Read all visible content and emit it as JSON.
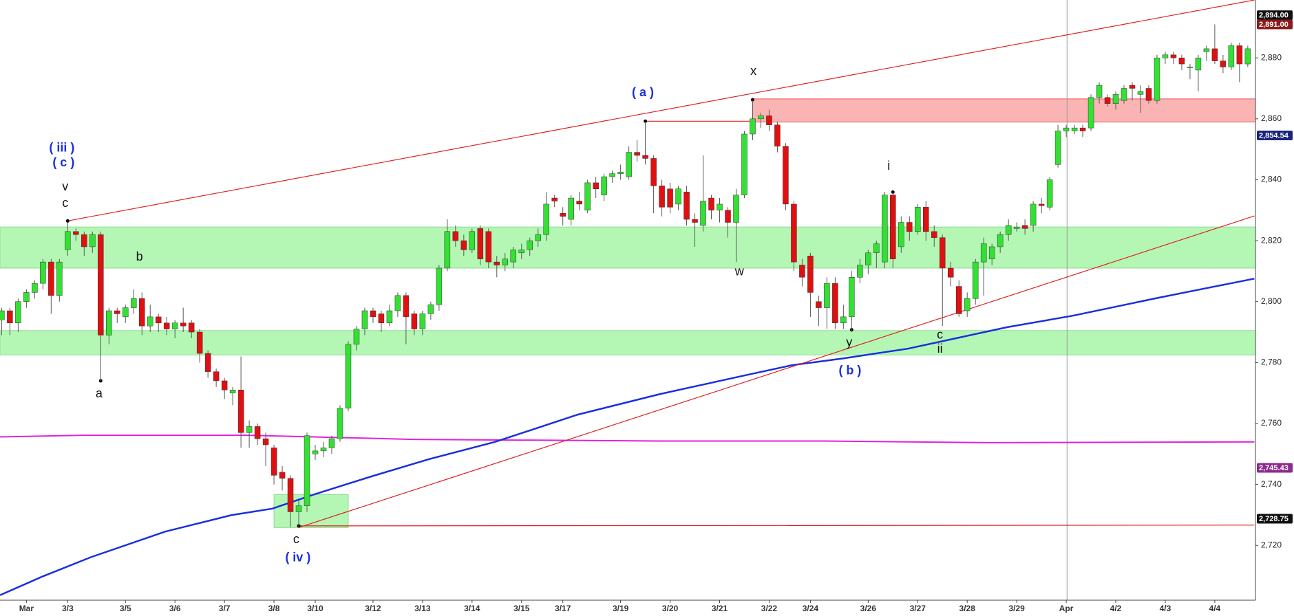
{
  "chart_data": {
    "type": "candlestick",
    "categories": [
      null,
      null,
      null,
      "Mar",
      null,
      null,
      null,
      null,
      "3/3",
      null,
      null,
      null,
      null,
      null,
      null,
      "3/5",
      null,
      null,
      null,
      null,
      null,
      "3/6",
      null,
      null,
      null,
      null,
      null,
      "3/7",
      null,
      null,
      null,
      null,
      null,
      "3/8",
      null,
      null,
      null,
      null,
      "3/10",
      null,
      null,
      null,
      null,
      null,
      null,
      "3/12",
      null,
      null,
      null,
      null,
      null,
      "3/13",
      null,
      null,
      null,
      null,
      null,
      "3/14",
      null,
      null,
      null,
      null,
      null,
      "3/15",
      null,
      null,
      null,
      null,
      "3/17",
      null,
      null,
      null,
      null,
      null,
      null,
      "3/19",
      null,
      null,
      null,
      null,
      null,
      "3/20",
      null,
      null,
      null,
      null,
      null,
      "3/21",
      null,
      null,
      null,
      null,
      null,
      "3/22",
      null,
      null,
      null,
      null,
      "3/24",
      null,
      null,
      null,
      null,
      null,
      null,
      "3/26",
      null,
      null,
      null,
      null,
      null,
      "3/27",
      null,
      null,
      null,
      null,
      null,
      "3/28",
      null,
      null,
      null,
      null,
      null,
      "3/29",
      null,
      null,
      null,
      null,
      null,
      "Apr",
      null,
      null,
      null,
      null,
      null,
      "4/2",
      null,
      null,
      null,
      null,
      null,
      "4/3",
      null,
      null,
      null,
      null,
      null,
      "4/4",
      null,
      null,
      null,
      null
    ],
    "candles": [
      [
        2794,
        2798,
        2789,
        2797
      ],
      [
        2797,
        2798,
        2789,
        2793
      ],
      [
        2793,
        2801,
        2790,
        2800
      ],
      [
        2800,
        2804,
        2798,
        2803
      ],
      [
        2803,
        2807,
        2801,
        2806
      ],
      [
        2806,
        2814,
        2804,
        2813
      ],
      [
        2813,
        2814,
        2796,
        2802
      ],
      [
        2802,
        2814,
        2800,
        2813
      ],
      [
        2817,
        2826,
        2815,
        2823
      ],
      [
        2823,
        2824,
        2820,
        2822
      ],
      [
        2822,
        2823,
        2815,
        2818
      ],
      [
        2818,
        2823,
        2816,
        2822
      ],
      [
        2822,
        2823,
        2774,
        2789
      ],
      [
        2789,
        2798,
        2786,
        2797
      ],
      [
        2797,
        2798,
        2793,
        2796
      ],
      [
        2795,
        2799,
        2793,
        2798
      ],
      [
        2798,
        2804,
        2796,
        2801
      ],
      [
        2801,
        2803,
        2789,
        2792
      ],
      [
        2792,
        2799,
        2790,
        2795
      ],
      [
        2795,
        2796,
        2790,
        2793
      ],
      [
        2793,
        2795,
        2789,
        2791
      ],
      [
        2791,
        2794,
        2788,
        2793
      ],
      [
        2793,
        2798,
        2790,
        2792
      ],
      [
        2793,
        2794,
        2788,
        2790
      ],
      [
        2790,
        2791,
        2780,
        2783
      ],
      [
        2783,
        2784,
        2775,
        2777
      ],
      [
        2777,
        2778,
        2772,
        2774
      ],
      [
        2774,
        2775,
        2768,
        2771
      ],
      [
        2770,
        2772,
        2766,
        2771
      ],
      [
        2771,
        2782,
        2752,
        2757
      ],
      [
        2757,
        2761,
        2752,
        2759
      ],
      [
        2759,
        2760,
        2753,
        2755
      ],
      [
        2755,
        2757,
        2746,
        2753
      ],
      [
        2752,
        2753,
        2740,
        2743
      ],
      [
        2744,
        2746,
        2738,
        2742
      ],
      [
        2742,
        2743,
        2726,
        2731
      ],
      [
        2731,
        2735,
        2726,
        2733
      ],
      [
        2733,
        2757,
        2731,
        2756
      ],
      [
        2750,
        2753,
        2748,
        2751
      ],
      [
        2751,
        2754,
        2749,
        2752
      ],
      [
        2752,
        2756,
        2750,
        2755
      ],
      [
        2755,
        2766,
        2754,
        2765
      ],
      [
        2765,
        2787,
        2764,
        2786
      ],
      [
        2786,
        2792,
        2784,
        2791
      ],
      [
        2791,
        2798,
        2789,
        2797
      ],
      [
        2797,
        2798,
        2793,
        2795
      ],
      [
        2796,
        2797,
        2790,
        2793
      ],
      [
        2793,
        2799,
        2792,
        2797
      ],
      [
        2797,
        2803,
        2795,
        2802
      ],
      [
        2802,
        2803,
        2786,
        2795
      ],
      [
        2796,
        2797,
        2789,
        2791
      ],
      [
        2791,
        2797,
        2789,
        2796
      ],
      [
        2796,
        2800,
        2794,
        2799
      ],
      [
        2799,
        2812,
        2797,
        2811
      ],
      [
        2811,
        2827,
        2810,
        2823
      ],
      [
        2823,
        2825,
        2818,
        2820
      ],
      [
        2820,
        2822,
        2815,
        2817
      ],
      [
        2817,
        2824,
        2816,
        2823
      ],
      [
        2824,
        2825,
        2812,
        2814
      ],
      [
        2823,
        2824,
        2811,
        2813
      ],
      [
        2813,
        2815,
        2808,
        2812
      ],
      [
        2812,
        2816,
        2810,
        2814
      ],
      [
        2813,
        2818,
        2811,
        2817
      ],
      [
        2816,
        2819,
        2814,
        2817
      ],
      [
        2817,
        2821,
        2815,
        2820
      ],
      [
        2820,
        2824,
        2818,
        2822
      ],
      [
        2822,
        2836,
        2820,
        2832
      ],
      [
        2834,
        2835,
        2831,
        2833
      ],
      [
        2829,
        2831,
        2825,
        2828
      ],
      [
        2827,
        2835,
        2825,
        2834
      ],
      [
        2833,
        2836,
        2830,
        2832
      ],
      [
        2830,
        2840,
        2829,
        2839
      ],
      [
        2839,
        2841,
        2834,
        2837
      ],
      [
        2835,
        2842,
        2833,
        2841
      ],
      [
        2841,
        2843,
        2839,
        2842
      ],
      [
        2842,
        2845,
        2840,
        2842.5
      ],
      [
        2841,
        2851,
        2840,
        2849
      ],
      [
        2849,
        2853,
        2846,
        2848
      ],
      [
        2848,
        2859,
        2845,
        2847
      ],
      [
        2847,
        2848,
        2829,
        2838
      ],
      [
        2838,
        2840,
        2828,
        2831
      ],
      [
        2837,
        2839,
        2829,
        2831
      ],
      [
        2832,
        2838,
        2830,
        2837
      ],
      [
        2836,
        2838,
        2825,
        2827
      ],
      [
        2827,
        2829,
        2818,
        2826
      ],
      [
        2825,
        2848,
        2823,
        2833
      ],
      [
        2834,
        2835,
        2827,
        2830
      ],
      [
        2830,
        2834,
        2826,
        2832
      ],
      [
        2830,
        2831,
        2821,
        2826
      ],
      [
        2826,
        2837,
        2813,
        2835
      ],
      [
        2835,
        2856,
        2834,
        2855
      ],
      [
        2855,
        2866,
        2853,
        2860
      ],
      [
        2860,
        2862,
        2857,
        2861
      ],
      [
        2861,
        2863,
        2856,
        2858
      ],
      [
        2858,
        2859,
        2849,
        2851
      ],
      [
        2851,
        2852,
        2830,
        2832
      ],
      [
        2832,
        2833,
        2810,
        2813
      ],
      [
        2812,
        2814,
        2805,
        2808
      ],
      [
        2815,
        2816,
        2795,
        2803
      ],
      [
        2800,
        2802,
        2792,
        2798
      ],
      [
        2798,
        2808,
        2791,
        2806
      ],
      [
        2806,
        2808,
        2791,
        2793
      ],
      [
        2793,
        2799,
        2791,
        2795
      ],
      [
        2795,
        2810,
        2790,
        2808
      ],
      [
        2808,
        2814,
        2806,
        2812
      ],
      [
        2812,
        2817,
        2809,
        2816
      ],
      [
        2816,
        2820,
        2811,
        2819
      ],
      [
        2813,
        2836,
        2811,
        2835
      ],
      [
        2835,
        2836,
        2811,
        2814
      ],
      [
        2818,
        2828,
        2816,
        2826
      ],
      [
        2826,
        2828,
        2820,
        2823
      ],
      [
        2823,
        2832,
        2822,
        2831
      ],
      [
        2831,
        2833,
        2820,
        2823
      ],
      [
        2823,
        2825,
        2818,
        2821
      ],
      [
        2821,
        2822,
        2792,
        2811
      ],
      [
        2811,
        2813,
        2805,
        2808
      ],
      [
        2805,
        2807,
        2795,
        2796
      ],
      [
        2797,
        2803,
        2795,
        2801
      ],
      [
        2801,
        2814,
        2799,
        2813
      ],
      [
        2813,
        2821,
        2802,
        2819
      ],
      [
        2814,
        2819,
        2812,
        2818
      ],
      [
        2818,
        2823,
        2816,
        2822
      ],
      [
        2822,
        2827,
        2820,
        2825
      ],
      [
        2824,
        2826,
        2823,
        2824.5
      ],
      [
        2825,
        2827,
        2822,
        2824
      ],
      [
        2825,
        2833,
        2823,
        2832
      ],
      [
        2832,
        2834,
        2829,
        2831.5
      ],
      [
        2831,
        2841,
        2830,
        2840
      ],
      [
        2845,
        2858,
        2844,
        2856
      ],
      [
        2856,
        2858,
        2854,
        2857
      ],
      [
        2856,
        2858,
        2855,
        2857
      ],
      [
        2857,
        2858,
        2854,
        2856
      ],
      [
        2857,
        2868,
        2856,
        2867
      ],
      [
        2867,
        2872,
        2865,
        2871
      ],
      [
        2867,
        2868,
        2864,
        2865
      ],
      [
        2865,
        2869,
        2863,
        2868
      ],
      [
        2866,
        2871,
        2865,
        2870
      ],
      [
        2871,
        2872,
        2866,
        2870
      ],
      [
        2868,
        2871,
        2862,
        2869
      ],
      [
        2870,
        2871,
        2865,
        2866
      ],
      [
        2866,
        2881,
        2865,
        2880
      ],
      [
        2880,
        2882,
        2878,
        2881
      ],
      [
        2881,
        2882,
        2878,
        2880
      ],
      [
        2880,
        2881,
        2876,
        2878
      ],
      [
        2877,
        2878,
        2873,
        2877
      ],
      [
        2876,
        2881,
        2869,
        2880
      ],
      [
        2882,
        2884,
        2879,
        2883
      ],
      [
        2883,
        2891,
        2878,
        2879
      ],
      [
        2879,
        2881,
        2875,
        2877
      ],
      [
        2877,
        2885,
        2876,
        2884
      ],
      [
        2884,
        2885,
        2872,
        2878
      ],
      [
        2878,
        2884,
        2877,
        2883
      ]
    ],
    "up_color": "#33e033",
    "down_color": "#e01010",
    "ylim": [
      2702,
      2899
    ],
    "yticks": [
      {
        "value": 2720,
        "label": "2,720"
      },
      {
        "value": 2740,
        "label": "2,740"
      },
      {
        "value": 2760,
        "label": "2,760"
      },
      {
        "value": 2780,
        "label": "2,780"
      },
      {
        "value": 2800,
        "label": "2,800"
      },
      {
        "value": 2820,
        "label": "2,820"
      },
      {
        "value": 2840,
        "label": "2,840"
      },
      {
        "value": 2860,
        "label": "2,860"
      },
      {
        "value": 2880,
        "label": "2,880"
      }
    ],
    "zones": [
      {
        "range": [
          2811,
          2824.5
        ],
        "color": "#b4f7b4"
      },
      {
        "range": [
          2782.5,
          2790.5
        ],
        "color": "#b4f7b4"
      }
    ],
    "price_tags": [
      {
        "value": 2894,
        "label": "2,894.00",
        "color": "#111111"
      },
      {
        "value": 2891,
        "label": "2,891.00",
        "color": "#8b1a1a"
      },
      {
        "value": 2854.54,
        "label": "2,854.54",
        "color": "#1a237e"
      },
      {
        "value": 2745.43,
        "label": "2,745.43",
        "color": "#8e2a8e"
      },
      {
        "value": 2728.75,
        "label": "2,728.75",
        "color": "#111111"
      }
    ],
    "annotations": [
      "( iii )",
      "( c )",
      "v",
      "c",
      "b",
      "a",
      "c",
      "( iv )",
      "( a )",
      "x",
      "w",
      "y",
      "( b )",
      "i",
      "c",
      "ii"
    ]
  }
}
